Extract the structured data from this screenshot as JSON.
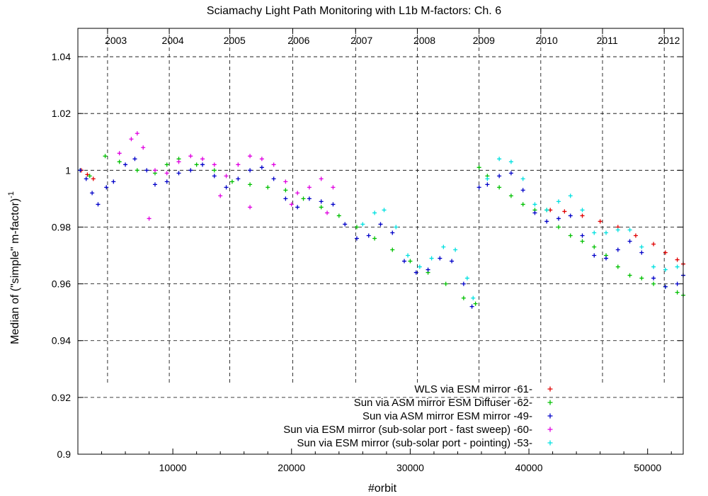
{
  "chart_data": {
    "type": "scatter",
    "title": "Sciamachy Light Path Monitoring with L1b M-factors: Ch. 6",
    "xlabel": "#orbit",
    "ylabel_main": "Median of (\"simple\" m-factor)",
    "ylabel_sup": "-1",
    "xlim": [
      2000,
      53000
    ],
    "ylim": [
      0.9,
      1.05
    ],
    "xticks": [
      10000,
      20000,
      30000,
      40000,
      50000
    ],
    "xtick_labels": [
      "10000",
      "20000",
      "30000",
      "40000",
      "50000"
    ],
    "yticks": [
      0.9,
      0.92,
      0.94,
      0.96,
      0.98,
      1.0,
      1.02,
      1.04
    ],
    "ytick_labels": [
      "0.9",
      "0.92",
      "0.94",
      "0.96",
      "0.98",
      "1",
      "1.02",
      "1.04"
    ],
    "year_labels": [
      "2003",
      "2004",
      "2005",
      "2006",
      "2007",
      "2008",
      "2009",
      "2010",
      "2011",
      "2012"
    ],
    "year_label_orbits": [
      5200,
      10000,
      15200,
      20600,
      25900,
      31200,
      36200,
      41500,
      46600,
      51800
    ],
    "year_boundary_orbits": [
      4500,
      9700,
      14800,
      20100,
      25400,
      30600,
      35800,
      41000,
      46200,
      51400
    ],
    "grid": true,
    "legend_position": "bottom-right",
    "series": [
      {
        "name": "WLS via ESM mirror -61-",
        "color": "#e00000",
        "points": [
          [
            2300,
            1.0
          ],
          [
            2800,
            0.9985
          ],
          [
            3300,
            0.997
          ],
          [
            41800,
            0.986
          ],
          [
            43000,
            0.9855
          ],
          [
            44500,
            0.984
          ],
          [
            46000,
            0.982
          ],
          [
            47500,
            0.98
          ],
          [
            49000,
            0.977
          ],
          [
            50500,
            0.974
          ],
          [
            51500,
            0.971
          ],
          [
            52500,
            0.9685
          ],
          [
            53000,
            0.967
          ]
        ]
      },
      {
        "name": "Sun via ASM mirror  ESM Diffuser -62-",
        "color": "#00c000",
        "points": [
          [
            2200,
            1.0
          ],
          [
            3000,
            0.998
          ],
          [
            4300,
            1.005
          ],
          [
            5500,
            1.003
          ],
          [
            7000,
            1.0
          ],
          [
            8500,
            0.999
          ],
          [
            9500,
            1.002
          ],
          [
            10500,
            1.004
          ],
          [
            12000,
            1.002
          ],
          [
            13500,
            1.0
          ],
          [
            15000,
            0.996
          ],
          [
            16500,
            0.995
          ],
          [
            18000,
            0.994
          ],
          [
            19500,
            0.993
          ],
          [
            21000,
            0.99
          ],
          [
            22500,
            0.987
          ],
          [
            24000,
            0.984
          ],
          [
            25500,
            0.98
          ],
          [
            27000,
            0.976
          ],
          [
            28500,
            0.972
          ],
          [
            30000,
            0.968
          ],
          [
            31500,
            0.964
          ],
          [
            33000,
            0.96
          ],
          [
            34500,
            0.955
          ],
          [
            35500,
            0.953
          ],
          [
            35800,
            1.001
          ],
          [
            36500,
            0.998
          ],
          [
            37500,
            0.994
          ],
          [
            38500,
            0.991
          ],
          [
            39500,
            0.988
          ],
          [
            40500,
            0.986
          ],
          [
            41500,
            0.986
          ],
          [
            42500,
            0.98
          ],
          [
            43500,
            0.977
          ],
          [
            44500,
            0.975
          ],
          [
            45500,
            0.973
          ],
          [
            46500,
            0.97
          ],
          [
            47500,
            0.966
          ],
          [
            48500,
            0.963
          ],
          [
            49500,
            0.962
          ],
          [
            50500,
            0.96
          ],
          [
            51500,
            0.959
          ],
          [
            52500,
            0.957
          ],
          [
            53000,
            0.956
          ]
        ]
      },
      {
        "name": "Sun via ASM mirror  ESM mirror -49-",
        "color": "#0000c8",
        "points": [
          [
            2200,
            1.0
          ],
          [
            2700,
            0.997
          ],
          [
            3200,
            0.992
          ],
          [
            3700,
            0.988
          ],
          [
            4400,
            0.994
          ],
          [
            5000,
            0.996
          ],
          [
            6000,
            1.002
          ],
          [
            6800,
            1.004
          ],
          [
            7800,
            1.0
          ],
          [
            8500,
            0.995
          ],
          [
            9500,
            0.996
          ],
          [
            10500,
            0.999
          ],
          [
            11500,
            1.0
          ],
          [
            12500,
            1.002
          ],
          [
            13500,
            0.998
          ],
          [
            14500,
            0.994
          ],
          [
            15500,
            0.997
          ],
          [
            16500,
            1.0
          ],
          [
            17500,
            1.001
          ],
          [
            18500,
            0.997
          ],
          [
            19500,
            0.99
          ],
          [
            20500,
            0.987
          ],
          [
            21500,
            0.99
          ],
          [
            22500,
            0.989
          ],
          [
            23500,
            0.988
          ],
          [
            24500,
            0.981
          ],
          [
            25500,
            0.976
          ],
          [
            26500,
            0.977
          ],
          [
            27500,
            0.981
          ],
          [
            28500,
            0.978
          ],
          [
            29500,
            0.968
          ],
          [
            30500,
            0.964
          ],
          [
            31500,
            0.965
          ],
          [
            32500,
            0.969
          ],
          [
            33500,
            0.968
          ],
          [
            34500,
            0.96
          ],
          [
            35200,
            0.952
          ],
          [
            35800,
            0.994
          ],
          [
            36500,
            0.995
          ],
          [
            37500,
            0.998
          ],
          [
            38500,
            0.999
          ],
          [
            39500,
            0.993
          ],
          [
            40500,
            0.985
          ],
          [
            41500,
            0.982
          ],
          [
            42500,
            0.983
          ],
          [
            43500,
            0.984
          ],
          [
            44500,
            0.977
          ],
          [
            45500,
            0.97
          ],
          [
            46500,
            0.969
          ],
          [
            47500,
            0.972
          ],
          [
            48500,
            0.975
          ],
          [
            49500,
            0.971
          ],
          [
            50500,
            0.962
          ],
          [
            51500,
            0.959
          ],
          [
            52500,
            0.96
          ],
          [
            53000,
            0.963
          ]
        ]
      },
      {
        "name": "Sun via ESM mirror (sub-solar port - fast sweep) -60-",
        "color": "#e000e0",
        "points": [
          [
            5500,
            1.006
          ],
          [
            6500,
            1.011
          ],
          [
            7000,
            1.013
          ],
          [
            7500,
            1.008
          ],
          [
            8500,
            1.0
          ],
          [
            9500,
            0.999
          ],
          [
            10500,
            1.003
          ],
          [
            11500,
            1.005
          ],
          [
            12500,
            1.004
          ],
          [
            13500,
            1.002
          ],
          [
            14500,
            0.998
          ],
          [
            15500,
            1.002
          ],
          [
            16500,
            1.005
          ],
          [
            17500,
            1.004
          ],
          [
            18500,
            1.002
          ],
          [
            19500,
            0.996
          ],
          [
            20500,
            0.992
          ],
          [
            21500,
            0.994
          ],
          [
            22500,
            0.997
          ],
          [
            23500,
            0.994
          ],
          [
            8000,
            0.983
          ],
          [
            14000,
            0.991
          ],
          [
            23000,
            0.985
          ],
          [
            16500,
            0.987
          ],
          [
            20000,
            0.988
          ]
        ]
      },
      {
        "name": "Sun via ESM mirror (sub-solar port - pointing) -53-",
        "color": "#00e0e0",
        "points": [
          [
            26000,
            0.981
          ],
          [
            27000,
            0.985
          ],
          [
            27800,
            0.986
          ],
          [
            28800,
            0.98
          ],
          [
            29800,
            0.97
          ],
          [
            30800,
            0.966
          ],
          [
            31800,
            0.969
          ],
          [
            32800,
            0.973
          ],
          [
            33800,
            0.972
          ],
          [
            34800,
            0.962
          ],
          [
            35300,
            0.955
          ],
          [
            36500,
            0.997
          ],
          [
            37500,
            1.004
          ],
          [
            38500,
            1.003
          ],
          [
            39500,
            0.997
          ],
          [
            40500,
            0.988
          ],
          [
            41500,
            0.986
          ],
          [
            42500,
            0.989
          ],
          [
            43500,
            0.991
          ],
          [
            44500,
            0.986
          ],
          [
            45500,
            0.978
          ],
          [
            46500,
            0.978
          ],
          [
            47500,
            0.979
          ],
          [
            48500,
            0.979
          ],
          [
            49500,
            0.973
          ],
          [
            50500,
            0.966
          ],
          [
            51500,
            0.965
          ],
          [
            52500,
            0.966
          ]
        ]
      }
    ]
  }
}
